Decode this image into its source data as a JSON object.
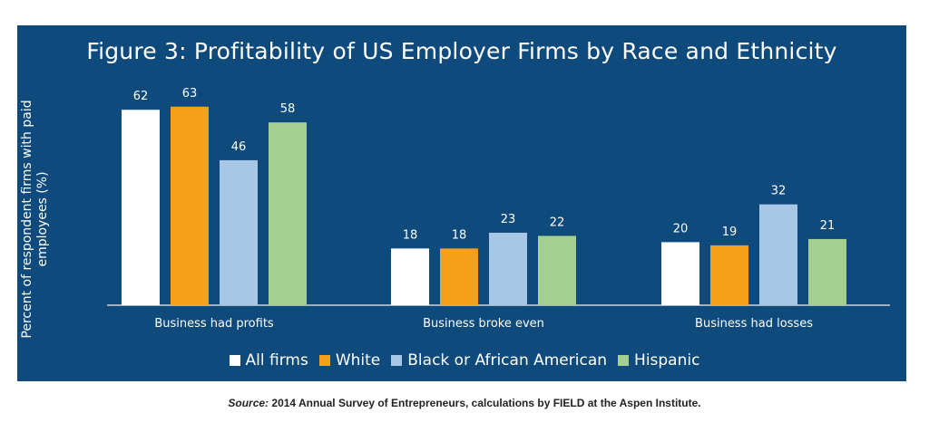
{
  "chart_data": {
    "type": "bar",
    "title": "Figure 3: Profitability of US Employer Firms by Race and Ethnicity",
    "ylabel": "Percent of respondent firms with paid employees (%)",
    "xlabel": "",
    "categories": [
      "Business had profits",
      "Business broke even",
      "Business had losses"
    ],
    "series": [
      {
        "name": "All firms",
        "color": "#ffffff",
        "values": [
          62,
          18,
          20
        ]
      },
      {
        "name": "White",
        "color": "#f6a01a",
        "values": [
          63,
          18,
          19
        ]
      },
      {
        "name": "Black or African American",
        "color": "#a8c6e6",
        "values": [
          46,
          23,
          32
        ]
      },
      {
        "name": "Hispanic",
        "color": "#a3cf8f",
        "values": [
          58,
          22,
          21
        ]
      }
    ],
    "ylim": [
      0,
      70
    ],
    "grid": false,
    "legend_position": "bottom"
  },
  "source": {
    "label": "Source:",
    "text": "2014 Annual Survey of Entrepreneurs, calculations by FIELD at the Aspen Institute."
  },
  "colors": {
    "panel_background": "#0e4a7b",
    "axis_line": "#c9d6e3"
  }
}
